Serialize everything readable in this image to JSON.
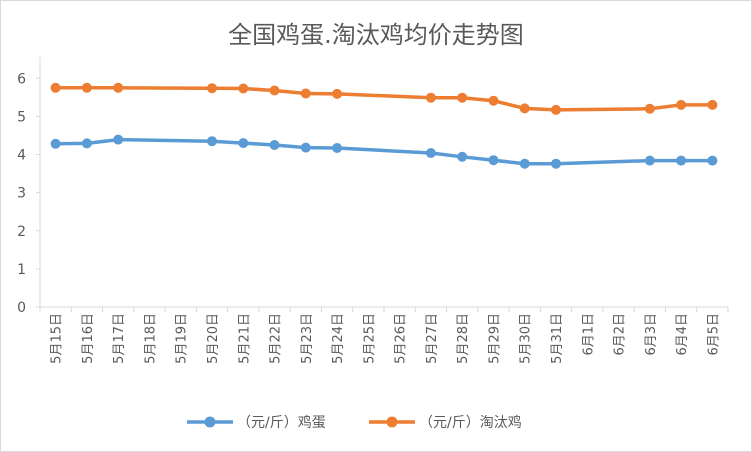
{
  "chart_data": {
    "type": "line",
    "title": "全国鸡蛋.淘汰鸡均价走势图",
    "categories": [
      "5月15日",
      "5月16日",
      "5月17日",
      "5月18日",
      "5月19日",
      "5月20日",
      "5月21日",
      "5月22日",
      "5月23日",
      "5月24日",
      "5月25日",
      "5月26日",
      "5月27日",
      "5月28日",
      "5月29日",
      "5月30日",
      "5月31日",
      "6月1日",
      "6月2日",
      "6月3日",
      "6月4日",
      "6月5日"
    ],
    "series": [
      {
        "name": "（元/斤）鸡蛋",
        "color": "#5b9bd5",
        "values": [
          4.28,
          4.29,
          4.39,
          null,
          null,
          4.35,
          4.3,
          4.25,
          4.18,
          4.17,
          null,
          null,
          4.04,
          3.94,
          3.85,
          3.76,
          3.76,
          null,
          null,
          3.84,
          3.84,
          3.84
        ]
      },
      {
        "name": "（元/斤）淘汰鸡",
        "color": "#ed7d31",
        "values": [
          5.75,
          5.75,
          5.75,
          null,
          null,
          5.74,
          5.73,
          5.68,
          5.6,
          5.59,
          null,
          null,
          5.49,
          5.49,
          5.41,
          5.21,
          5.17,
          null,
          null,
          5.2,
          5.3,
          5.3
        ]
      }
    ],
    "yticks": [
      0,
      1,
      2,
      3,
      4,
      5,
      6
    ],
    "ylim": [
      0,
      6.4
    ],
    "grid": false,
    "legend_position": "bottom"
  }
}
